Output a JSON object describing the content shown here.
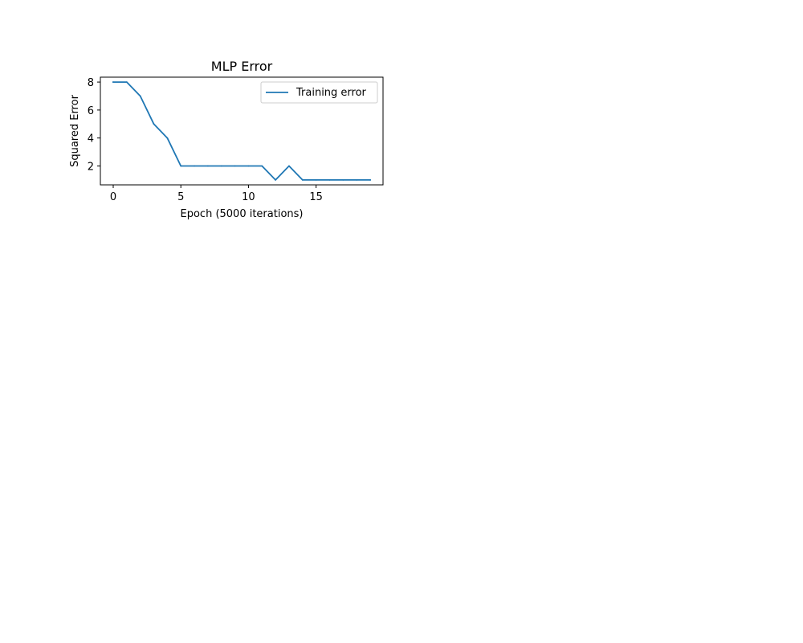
{
  "chart_data": {
    "type": "line",
    "title": "MLP Error",
    "xlabel": "Epoch (5000 iterations)",
    "ylabel": "Squared Error",
    "x": [
      0,
      1,
      2,
      3,
      4,
      5,
      6,
      7,
      8,
      9,
      10,
      11,
      12,
      13,
      14,
      15,
      16,
      17,
      18,
      19
    ],
    "series": [
      {
        "name": "Training error",
        "color": "#1f77b4",
        "values": [
          8,
          8,
          7,
          5,
          4,
          2,
          2,
          2,
          2,
          2,
          2,
          2,
          1,
          2,
          1,
          1,
          1,
          1,
          1,
          1
        ]
      }
    ],
    "xlim": [
      -0.95,
      19.95
    ],
    "ylim": [
      0.65,
      8.35
    ],
    "xticks": [
      0,
      5,
      10,
      15
    ],
    "xtick_labels": [
      "0",
      "5",
      "10",
      "15"
    ],
    "yticks": [
      2,
      4,
      6,
      8
    ],
    "ytick_labels": [
      "2",
      "4",
      "6",
      "8"
    ],
    "grid": false,
    "legend_position": "top-right"
  }
}
